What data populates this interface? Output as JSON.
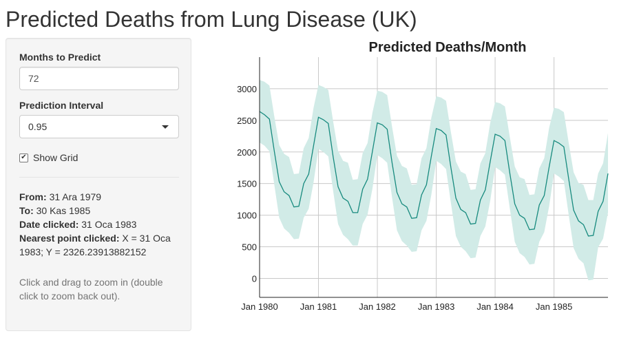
{
  "page": {
    "title": "Predicted Deaths from Lung Disease (UK)"
  },
  "sidebar": {
    "months_label": "Months to Predict",
    "months_value": "72",
    "interval_label": "Prediction Interval",
    "interval_value": "0.95",
    "grid_label": "Show Grid",
    "grid_checked": true,
    "from_label": "From:",
    "from_value": "31 Ara 1979",
    "to_label": "To:",
    "to_value": "30 Kas 1985",
    "date_clicked_label": "Date clicked:",
    "date_clicked_value": "31 Oca 1983",
    "nearest_label": "Nearest point clicked:",
    "nearest_value": "X = 31 Oca 1983; Y = 2326.23913882152",
    "help_text": "Click and drag to zoom in (double click to zoom back out)."
  },
  "colors": {
    "line": "#178a7e",
    "band": "#d1ebe7",
    "grid": "#c8c8c8"
  },
  "chart_data": {
    "type": "line",
    "title": "Predicted Deaths/Month",
    "x_ticks": [
      "Jan 1980",
      "Jan 1981",
      "Jan 1982",
      "Jan 1983",
      "Jan 1984",
      "Jan 1985"
    ],
    "y_ticks": [
      "0",
      "500",
      "1000",
      "1500",
      "2000",
      "2500",
      "3000"
    ],
    "ylim": [
      -300,
      3500
    ],
    "x_start": "Jan 1980",
    "x_end": "Dec 1985",
    "grid": true,
    "series": [
      {
        "values": [
          2640,
          2590,
          2520,
          2010,
          1530,
          1370,
          1310,
          1130,
          1140,
          1500,
          1650,
          2100,
          2550,
          2510,
          2450,
          1920,
          1450,
          1270,
          1220,
          1040,
          1040,
          1410,
          1570,
          2010,
          2460,
          2430,
          2360,
          1830,
          1360,
          1180,
          1130,
          950,
          960,
          1320,
          1480,
          1930,
          2370,
          2340,
          2270,
          1750,
          1270,
          1090,
          1040,
          860,
          870,
          1240,
          1400,
          1850,
          2280,
          2250,
          2180,
          1660,
          1180,
          1000,
          950,
          770,
          780,
          1160,
          1310,
          1760,
          2180,
          2140,
          2080,
          1570,
          1080,
          910,
          850,
          670,
          680,
          1060,
          1220,
          1660
        ]
      }
    ],
    "band_upper": [
      3140,
      3110,
      3050,
      2560,
      2110,
      1970,
      1920,
      1650,
      1660,
      2060,
      2220,
      2700,
      3060,
      3030,
      2980,
      2480,
      2020,
      1860,
      1830,
      1560,
      1570,
      1980,
      2140,
      2620,
      2970,
      2950,
      2900,
      2400,
      1940,
      1780,
      1740,
      1480,
      1490,
      1900,
      2060,
      2540,
      2880,
      2860,
      2810,
      2310,
      1850,
      1690,
      1650,
      1400,
      1410,
      1820,
      1980,
      2460,
      2790,
      2770,
      2720,
      2230,
      1770,
      1600,
      1570,
      1320,
      1330,
      1740,
      1900,
      2380,
      2700,
      2680,
      2630,
      2140,
      1680,
      1510,
      1480,
      1240,
      1240,
      1660,
      1820,
      2300
    ],
    "band_lower": [
      2150,
      2100,
      2010,
      1480,
      960,
      790,
      720,
      620,
      630,
      960,
      1100,
      1520,
      2050,
      2000,
      1930,
      1380,
      860,
      690,
      620,
      520,
      520,
      860,
      1010,
      1420,
      1950,
      1900,
      1830,
      1280,
      760,
      590,
      520,
      420,
      430,
      760,
      910,
      1320,
      1860,
      1810,
      1730,
      1190,
      670,
      500,
      430,
      320,
      330,
      670,
      820,
      1230,
      1760,
      1710,
      1640,
      1100,
      580,
      400,
      340,
      220,
      230,
      580,
      730,
      1140,
      1660,
      1610,
      1540,
      1000,
      480,
      310,
      240,
      -30,
      -20,
      490,
      630,
      1040
    ]
  }
}
